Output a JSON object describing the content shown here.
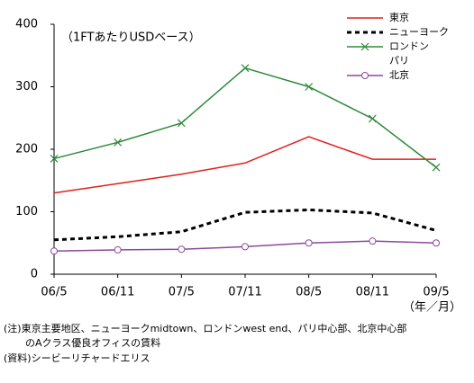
{
  "chart_data": {
    "type": "line",
    "annotation": "（1FTあたりUSDベース）",
    "x_label": "（年／月）",
    "categories": [
      "06/5",
      "06/11",
      "07/5",
      "07/11",
      "08/5",
      "08/11",
      "09/5"
    ],
    "series": [
      {
        "name": "東京",
        "color": "#e0201b",
        "values": [
          130,
          145,
          160,
          178,
          220,
          184,
          184
        ]
      },
      {
        "name": "ニューヨーク",
        "color": "#000000",
        "dash": true,
        "values": [
          55,
          60,
          68,
          99,
          103,
          98,
          70
        ]
      },
      {
        "name": "ロンドン",
        "color": "#2e8b3a",
        "marker": "x",
        "values": [
          185,
          211,
          242,
          330,
          300,
          249,
          171
        ]
      },
      {
        "name": "パリ",
        "values": [
          null,
          null,
          null,
          null,
          null,
          null,
          null
        ]
      },
      {
        "name": "北京",
        "color": "#8a4a9c",
        "marker": "circle",
        "values": [
          37,
          39,
          40,
          44,
          50,
          53,
          50
        ]
      }
    ],
    "ylim": [
      0,
      400
    ],
    "yticks": [
      0,
      100,
      200,
      300,
      400
    ],
    "notes": [
      "(注)東京主要地区、ニューヨークmidtown、ロンドンwest end、パリ中心部、北京中心部",
      "のAクラス優良オフィスの賃料",
      "(資料)シービーリチャードエリス"
    ]
  }
}
